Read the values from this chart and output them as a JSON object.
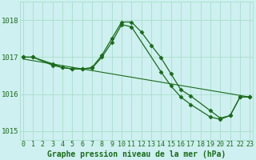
{
  "series_peaked": {
    "x": [
      0,
      1,
      3,
      4,
      5,
      6,
      7,
      8,
      9,
      10,
      11,
      12,
      13,
      14,
      15,
      16,
      17,
      19,
      20,
      21,
      22,
      23
    ],
    "y": [
      1017.0,
      1017.0,
      1016.78,
      1016.72,
      1016.68,
      1016.68,
      1016.72,
      1017.05,
      1017.5,
      1017.95,
      1017.95,
      1017.68,
      1017.32,
      1016.98,
      1016.55,
      1016.12,
      1015.95,
      1015.55,
      1015.35,
      1015.42,
      1015.92,
      1015.92
    ]
  },
  "series_smooth": {
    "x": [
      0,
      1,
      3,
      4,
      5,
      6,
      7,
      8,
      9,
      10,
      11,
      14,
      15,
      16,
      17,
      19,
      20,
      21,
      22,
      23
    ],
    "y": [
      1017.0,
      1017.0,
      1016.82,
      1016.72,
      1016.68,
      1016.68,
      1016.7,
      1017.0,
      1017.4,
      1017.88,
      1017.82,
      1016.6,
      1016.22,
      1015.92,
      1015.72,
      1015.38,
      1015.32,
      1015.42,
      1015.92,
      1015.92
    ]
  },
  "trend_line": {
    "x": [
      0,
      23
    ],
    "y": [
      1016.95,
      1015.92
    ]
  },
  "bg_color": "#cef0f0",
  "line_color": "#1a6b1a",
  "grid_major_color": "#aaddcc",
  "grid_minor_color": "#cceedd",
  "xlabel": "Graphe pression niveau de la mer (hPa)",
  "ylim": [
    1014.75,
    1018.5
  ],
  "xlim": [
    -0.3,
    23.3
  ],
  "yticks": [
    1015,
    1016,
    1017,
    1018
  ],
  "xticks": [
    0,
    1,
    2,
    3,
    4,
    5,
    6,
    7,
    8,
    9,
    10,
    11,
    12,
    13,
    14,
    15,
    16,
    17,
    18,
    19,
    20,
    21,
    22,
    23
  ],
  "xlabel_fontsize": 7.0,
  "tick_fontsize": 6.0,
  "ytick_fontsize": 6.5
}
